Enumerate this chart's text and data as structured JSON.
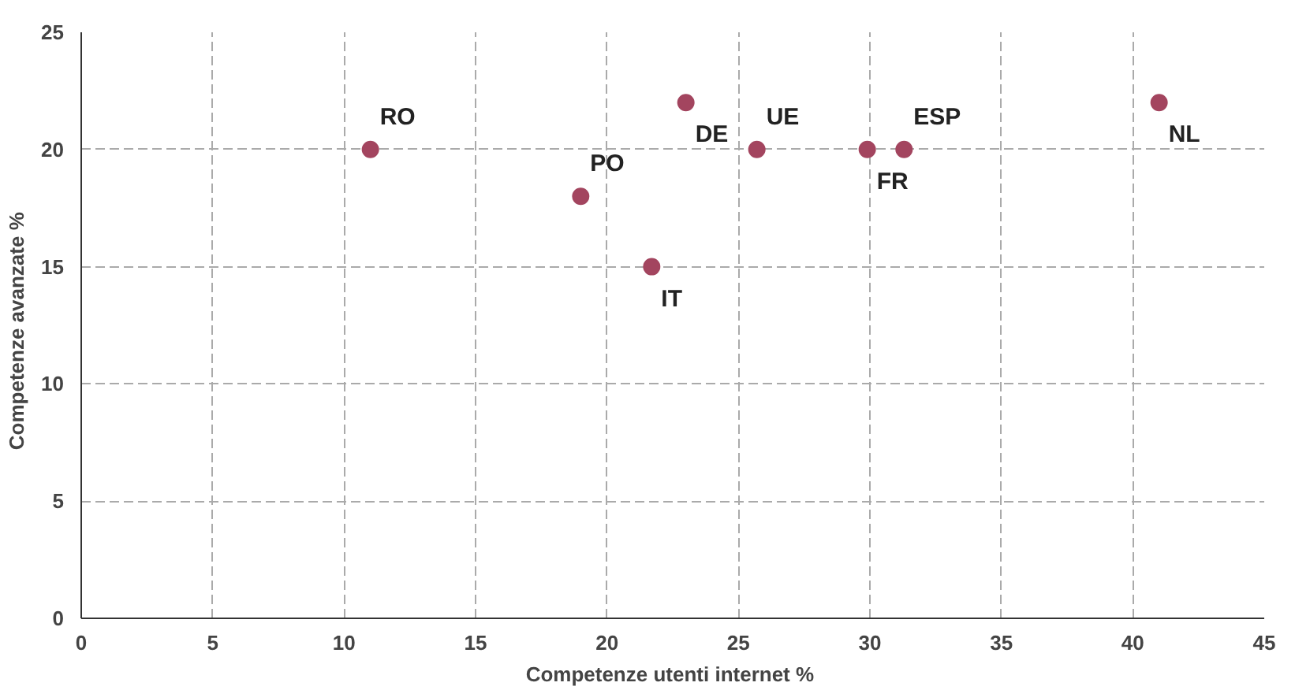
{
  "chart_data": {
    "type": "scatter",
    "xlabel": "Competenze utenti internet  %",
    "ylabel": "Competenze avanzate   %",
    "x": [
      11,
      23,
      19,
      21.7,
      25.7,
      29.9,
      31.3,
      41
    ],
    "series": [
      {
        "color": "#a3455f",
        "values": [
          20,
          22,
          18,
          15,
          20,
          20,
          20,
          22
        ]
      }
    ],
    "xlim": [
      0,
      45
    ],
    "xticks": [
      0,
      5,
      10,
      15,
      20,
      25,
      30,
      35,
      40,
      45
    ],
    "ylim": [
      0,
      25
    ],
    "yticks": [
      0,
      5,
      10,
      15,
      20,
      25
    ],
    "grid": true,
    "marker": "circle",
    "line_style": "dashed",
    "annotations": [
      {
        "text": "RO",
        "x": 11,
        "y": 20
      },
      {
        "text": "DE",
        "x": 23,
        "y": 22
      },
      {
        "text": "PO",
        "x": 19,
        "y": 18
      },
      {
        "text": "IT",
        "x": 21.7,
        "y": 15
      },
      {
        "text": "UE",
        "x": 25.7,
        "y": 20
      },
      {
        "text": "FR",
        "x": 29.9,
        "y": 20
      },
      {
        "text": "ESP",
        "x": 31.3,
        "y": 20
      },
      {
        "text": "NL",
        "x": 41,
        "y": 22
      }
    ]
  }
}
